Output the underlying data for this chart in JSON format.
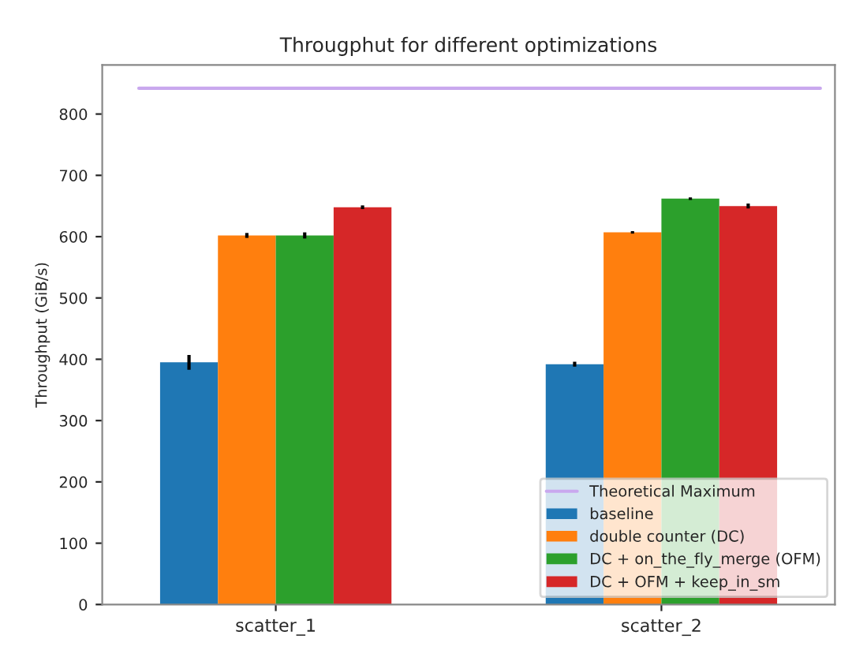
{
  "chart_data": {
    "type": "bar",
    "title": "Througphut for different optimizations",
    "ylabel": "Throughput (GiB/s)",
    "categories": [
      "scatter_1",
      "scatter_2"
    ],
    "series": [
      {
        "name": "baseline",
        "color": "#1f77b4",
        "values": [
          395,
          392
        ],
        "errors": [
          12,
          4
        ]
      },
      {
        "name": "double counter (DC)",
        "color": "#ff7f0e",
        "values": [
          602,
          607
        ],
        "errors": [
          4,
          2
        ]
      },
      {
        "name": "DC + on_the_fly_merge (OFM)",
        "color": "#2ca02c",
        "values": [
          602,
          662
        ],
        "errors": [
          5,
          2
        ]
      },
      {
        "name": "DC + OFM + keep_in_sm",
        "color": "#d62728",
        "values": [
          648,
          650
        ],
        "errors": [
          3,
          4
        ]
      }
    ],
    "ref_lines": [
      {
        "axis": "y",
        "value": 842,
        "label": "Theoretical Maximum",
        "color": "#c9a8ee"
      }
    ],
    "ylim": [
      0,
      880
    ],
    "yticks": [
      0,
      100,
      200,
      300,
      400,
      500,
      600,
      700,
      800
    ],
    "legend": "bottom right",
    "grid": false
  }
}
